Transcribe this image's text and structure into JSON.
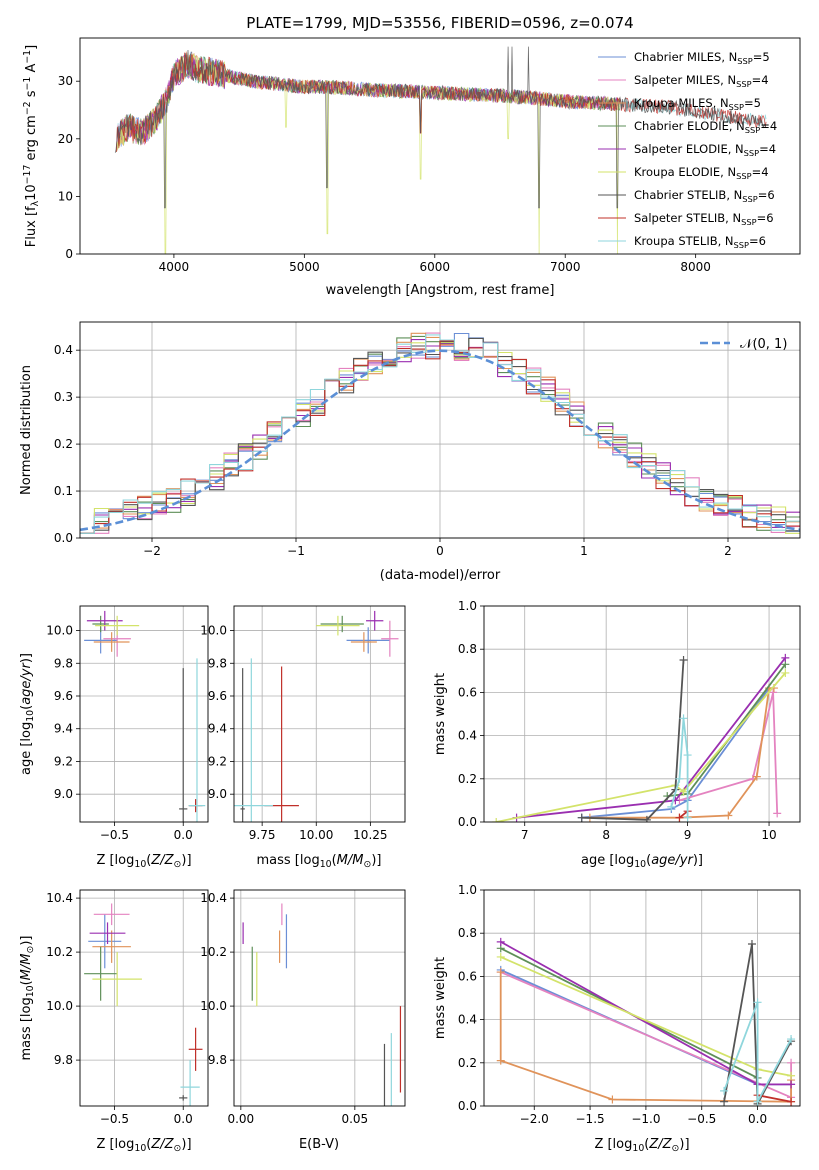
{
  "figure": {
    "title": "PLATE=1799, MJD=53556, FIBERID=0596, z=0.074"
  },
  "colors": {
    "Chabrier MILES": "#6b8fd6",
    "Salpeter MILES": "#e483c0",
    "Kroupa MILES": "#e0935a",
    "Chabrier ELODIE": "#5e8f58",
    "Salpeter ELODIE": "#9a2fb0",
    "Kroupa ELODIE": "#d3e36a",
    "Chabrier STELIB": "#555555",
    "Salpeter STELIB": "#c0302a",
    "Kroupa STELIB": "#8fd6dc",
    "normal": "#5b8fd6",
    "grid": "#b0b0b0"
  },
  "chart_data": [
    {
      "id": "spectrum",
      "type": "line",
      "title": "PLATE=1799, MJD=53556, FIBERID=0596, z=0.074",
      "xlabel": "wavelength [Angstrom, rest frame]",
      "ylabel": "Flux [f_λ 10^-17 erg cm^-2 s^-1 A^-1]",
      "xlim": [
        3280,
        8800
      ],
      "ylim": [
        0,
        37.5
      ],
      "xticks": [
        4000,
        5000,
        6000,
        7000,
        8000
      ],
      "yticks": [
        0,
        10,
        20,
        30
      ],
      "grid": false,
      "legend_position": "top-right",
      "legend": [
        {
          "label": "Chabrier MILES, N_SSP=5"
        },
        {
          "label": "Salpeter MILES, N_SSP=4"
        },
        {
          "label": "Kroupa MILES, N_SSP=5"
        },
        {
          "label": "Chabrier ELODIE, N_SSP=4"
        },
        {
          "label": "Salpeter ELODIE, N_SSP=4"
        },
        {
          "label": "Kroupa ELODIE, N_SSP=4"
        },
        {
          "label": "Chabrier STELIB, N_SSP=6"
        },
        {
          "label": "Salpeter STELIB, N_SSP=6"
        },
        {
          "label": "Kroupa STELIB, N_SSP=6"
        }
      ],
      "continuum": [
        [
          3550,
          20
        ],
        [
          3650,
          22
        ],
        [
          3750,
          21
        ],
        [
          3850,
          23
        ],
        [
          3950,
          27
        ],
        [
          4000,
          31
        ],
        [
          4100,
          33
        ],
        [
          4200,
          32
        ],
        [
          4400,
          31
        ],
        [
          4600,
          30
        ],
        [
          4800,
          29.5
        ],
        [
          5000,
          29
        ],
        [
          5200,
          29
        ],
        [
          5500,
          28.5
        ],
        [
          6000,
          28
        ],
        [
          6500,
          27.5
        ],
        [
          6800,
          27
        ],
        [
          7000,
          26.5
        ],
        [
          7400,
          26
        ],
        [
          7800,
          25.5
        ],
        [
          8200,
          24
        ],
        [
          8500,
          23
        ]
      ],
      "absorption": [
        [
          3933,
          0
        ],
        [
          4861,
          22
        ],
        [
          5175,
          3.5
        ],
        [
          5890,
          13
        ],
        [
          6563,
          20
        ],
        [
          6800,
          0
        ],
        [
          7400,
          0
        ]
      ],
      "emission_spikes": [
        6560,
        6590,
        6720
      ]
    },
    {
      "id": "residuals",
      "type": "step",
      "xlabel": "(data-model)/error",
      "ylabel": "Normed distribution",
      "xlim": [
        -2.5,
        2.5
      ],
      "ylim": [
        0,
        0.46
      ],
      "xticks": [
        -2,
        -1,
        0,
        1,
        2
      ],
      "yticks": [
        0.0,
        0.1,
        0.2,
        0.3,
        0.4
      ],
      "grid": true,
      "bin_width": 0.1,
      "reference": {
        "label": "𝒩(0, 1)",
        "mean": 0,
        "sigma": 1
      },
      "legend_position": "top-right"
    },
    {
      "id": "age-vs-Z",
      "type": "errorbar",
      "xlabel": "Z [log10(Z/Z⊙)]",
      "ylabel": "age [log10(age/yr)]",
      "xlim": [
        -0.75,
        0.18
      ],
      "ylim": [
        8.83,
        10.15
      ],
      "xticks": [
        -0.5,
        0.0
      ],
      "yticks": [
        9.0,
        9.2,
        9.4,
        9.6,
        9.8,
        10.0
      ],
      "grid": true,
      "points": [
        {
          "model": "Chabrier MILES",
          "x": -0.6,
          "y": 9.94,
          "xerr": 0.12,
          "yerr": 0.08
        },
        {
          "model": "Salpeter MILES",
          "x": -0.48,
          "y": 9.95,
          "xerr": 0.1,
          "yerr": 0.11
        },
        {
          "model": "Kroupa MILES",
          "x": -0.52,
          "y": 9.93,
          "xerr": 0.13,
          "yerr": 0.06
        },
        {
          "model": "Chabrier ELODIE",
          "x": -0.6,
          "y": 10.04,
          "xerr": 0.06,
          "yerr": 0.05
        },
        {
          "model": "Salpeter ELODIE",
          "x": -0.57,
          "y": 10.06,
          "xerr": 0.13,
          "yerr": 0.06
        },
        {
          "model": "Kroupa ELODIE",
          "x": -0.48,
          "y": 10.03,
          "xerr": 0.16,
          "yerr": 0.06
        },
        {
          "model": "Chabrier STELIB",
          "x": 0.0,
          "y": 8.91,
          "xerr": 0.03,
          "yerr": 0.86
        },
        {
          "model": "Salpeter STELIB",
          "x": 0.09,
          "y": 8.93,
          "xerr": 0.05,
          "yerr": 0.04
        },
        {
          "model": "Kroupa STELIB",
          "x": 0.1,
          "y": 8.93,
          "xerr": 0.06,
          "yerr": 0.9
        }
      ]
    },
    {
      "id": "age-vs-mass",
      "type": "errorbar",
      "xlabel": "mass [log10(M/M⊙)]",
      "ylabel": "",
      "xlim": [
        9.62,
        10.41
      ],
      "ylim": [
        8.83,
        10.15
      ],
      "xticks": [
        9.75,
        10.0,
        10.25
      ],
      "yticks": [
        9.0,
        9.2,
        9.4,
        9.6,
        9.8,
        10.0
      ],
      "grid": true,
      "points": [
        {
          "model": "Chabrier MILES",
          "x": 10.24,
          "y": 9.94,
          "xerr": 0.1,
          "yerr": 0.08
        },
        {
          "model": "Salpeter MILES",
          "x": 10.34,
          "y": 9.95,
          "xerr": 0.04,
          "yerr": 0.11
        },
        {
          "model": "Kroupa MILES",
          "x": 10.22,
          "y": 9.93,
          "xerr": 0.06,
          "yerr": 0.06
        },
        {
          "model": "Chabrier ELODIE",
          "x": 10.12,
          "y": 10.04,
          "xerr": 0.1,
          "yerr": 0.05
        },
        {
          "model": "Salpeter ELODIE",
          "x": 10.27,
          "y": 10.06,
          "xerr": 0.04,
          "yerr": 0.06
        },
        {
          "model": "Kroupa ELODIE",
          "x": 10.1,
          "y": 10.03,
          "xerr": 0.1,
          "yerr": 0.06
        },
        {
          "model": "Chabrier STELIB",
          "x": 9.66,
          "y": 8.91,
          "xerr": 0.01,
          "yerr": 0.86
        },
        {
          "model": "Salpeter STELIB",
          "x": 9.84,
          "y": 8.93,
          "xerr": 0.08,
          "yerr": 0.85
        },
        {
          "model": "Kroupa STELIB",
          "x": 9.7,
          "y": 8.93,
          "xerr": 0.1,
          "yerr": 0.9
        }
      ]
    },
    {
      "id": "weight-vs-age",
      "type": "line",
      "xlabel": "age [log10(age/yr)]",
      "ylabel": "mass weight",
      "xlim": [
        6.5,
        10.38
      ],
      "ylim": [
        0,
        1
      ],
      "xticks": [
        7,
        8,
        9,
        10
      ],
      "yticks": [
        0.0,
        0.2,
        0.4,
        0.6,
        0.8,
        1.0
      ],
      "grid": true,
      "series": [
        {
          "model": "Chabrier MILES",
          "x": [
            7.7,
            8.8,
            9.0,
            10.0
          ],
          "y": [
            0.02,
            0.06,
            0.1,
            0.62
          ]
        },
        {
          "model": "Salpeter MILES",
          "x": [
            8.9,
            9.8,
            10.05,
            10.1
          ],
          "y": [
            0.1,
            0.2,
            0.6,
            0.04
          ]
        },
        {
          "model": "Kroupa MILES",
          "x": [
            7.8,
            8.9,
            9.5,
            9.85,
            10.0,
            10.06
          ],
          "y": [
            0.02,
            0.02,
            0.03,
            0.21,
            0.62,
            0.62
          ]
        },
        {
          "model": "Chabrier ELODIE",
          "x": [
            8.75,
            9.0,
            10.2
          ],
          "y": [
            0.12,
            0.13,
            0.73
          ]
        },
        {
          "model": "Salpeter ELODIE",
          "x": [
            6.9,
            8.85,
            10.2
          ],
          "y": [
            0.02,
            0.1,
            0.76
          ]
        },
        {
          "model": "Kroupa ELODIE",
          "x": [
            6.65,
            8.85,
            8.95,
            10.2
          ],
          "y": [
            0.0,
            0.17,
            0.14,
            0.69
          ]
        },
        {
          "model": "Chabrier STELIB",
          "x": [
            7.7,
            8.5,
            8.85,
            8.95
          ],
          "y": [
            0.02,
            0.01,
            0.15,
            0.75
          ]
        },
        {
          "model": "Salpeter STELIB",
          "x": [
            8.9,
            9.0
          ],
          "y": [
            0.02,
            0.05
          ]
        },
        {
          "model": "Kroupa STELIB",
          "x": [
            8.8,
            8.9,
            8.95,
            9.0,
            9.0
          ],
          "y": [
            0.07,
            0.2,
            0.48,
            0.31,
            0.02
          ]
        }
      ]
    },
    {
      "id": "mass-vs-Z",
      "type": "errorbar",
      "xlabel": "Z [log10(Z/Z⊙)]",
      "ylabel": "mass [log10(M/M⊙)]",
      "xlim": [
        -0.75,
        0.18
      ],
      "ylim": [
        9.63,
        10.43
      ],
      "xticks": [
        -0.5,
        0.0
      ],
      "yticks": [
        9.8,
        10.0,
        10.2,
        10.4
      ],
      "grid": true,
      "points": [
        {
          "model": "Chabrier MILES",
          "x": -0.57,
          "y": 10.24,
          "xerr": 0.12,
          "yerr": 0.1
        },
        {
          "model": "Salpeter MILES",
          "x": -0.52,
          "y": 10.34,
          "xerr": 0.13,
          "yerr": 0.04
        },
        {
          "model": "Kroupa MILES",
          "x": -0.52,
          "y": 10.22,
          "xerr": 0.14,
          "yerr": 0.06
        },
        {
          "model": "Chabrier ELODIE",
          "x": -0.6,
          "y": 10.12,
          "xerr": 0.12,
          "yerr": 0.1
        },
        {
          "model": "Salpeter ELODIE",
          "x": -0.55,
          "y": 10.27,
          "xerr": 0.13,
          "yerr": 0.04
        },
        {
          "model": "Kroupa ELODIE",
          "x": -0.48,
          "y": 10.1,
          "xerr": 0.18,
          "yerr": 0.1
        },
        {
          "model": "Chabrier STELIB",
          "x": 0.0,
          "y": 9.66,
          "xerr": 0.03,
          "yerr": 0.01
        },
        {
          "model": "Salpeter STELIB",
          "x": 0.09,
          "y": 9.84,
          "xerr": 0.05,
          "yerr": 0.08
        },
        {
          "model": "Kroupa STELIB",
          "x": 0.05,
          "y": 9.7,
          "xerr": 0.07,
          "yerr": 0.1
        }
      ]
    },
    {
      "id": "mass-vs-ebv",
      "type": "errorbar",
      "xlabel": "E(B-V)",
      "ylabel": "",
      "xlim": [
        -0.003,
        0.072
      ],
      "ylim": [
        9.63,
        10.43
      ],
      "xticks": [
        0.0,
        0.05
      ],
      "yticks": [
        9.8,
        10.0,
        10.2,
        10.4
      ],
      "grid": true,
      "points": [
        {
          "model": "Chabrier MILES",
          "x": 0.02,
          "y": 10.24,
          "xerr": 0.0,
          "yerr": 0.1
        },
        {
          "model": "Salpeter MILES",
          "x": 0.018,
          "y": 10.34,
          "xerr": 0.0,
          "yerr": 0.04
        },
        {
          "model": "Kroupa MILES",
          "x": 0.017,
          "y": 10.22,
          "xerr": 0.0,
          "yerr": 0.06
        },
        {
          "model": "Chabrier ELODIE",
          "x": 0.005,
          "y": 10.12,
          "xerr": 0.0,
          "yerr": 0.1
        },
        {
          "model": "Salpeter ELODIE",
          "x": 0.001,
          "y": 10.27,
          "xerr": 0.0,
          "yerr": 0.04
        },
        {
          "model": "Kroupa ELODIE",
          "x": 0.007,
          "y": 10.1,
          "xerr": 0.0,
          "yerr": 0.1
        },
        {
          "model": "Chabrier STELIB",
          "x": 0.063,
          "y": 9.66,
          "xerr": 0.0,
          "yerr": 0.2
        },
        {
          "model": "Salpeter STELIB",
          "x": 0.07,
          "y": 9.84,
          "xerr": 0.0,
          "yerr": 0.16
        },
        {
          "model": "Kroupa STELIB",
          "x": 0.066,
          "y": 9.7,
          "xerr": 0.0,
          "yerr": 0.2
        }
      ]
    },
    {
      "id": "weight-vs-Z",
      "type": "line",
      "xlabel": "Z [log10(Z/Z⊙)]",
      "ylabel": "mass weight",
      "xlim": [
        -2.45,
        0.38
      ],
      "ylim": [
        0,
        1
      ],
      "xticks": [
        -2.0,
        -1.5,
        -1.0,
        -0.5,
        0.0
      ],
      "yticks": [
        0.0,
        0.2,
        0.4,
        0.6,
        0.8,
        1.0
      ],
      "grid": true,
      "series": [
        {
          "model": "Chabrier MILES",
          "x": [
            -2.3,
            0.0,
            0.3
          ],
          "y": [
            0.63,
            0.1,
            0.1
          ]
        },
        {
          "model": "Salpeter MILES",
          "x": [
            -2.3,
            0.3,
            0.3
          ],
          "y": [
            0.62,
            0.04,
            0.2
          ]
        },
        {
          "model": "Kroupa MILES",
          "x": [
            -2.3,
            -2.3,
            -1.3,
            0.3,
            0.3
          ],
          "y": [
            0.62,
            0.21,
            0.03,
            0.02,
            0.12
          ]
        },
        {
          "model": "Chabrier ELODIE",
          "x": [
            -2.3,
            0.0
          ],
          "y": [
            0.73,
            0.13
          ]
        },
        {
          "model": "Salpeter ELODIE",
          "x": [
            -2.3,
            0.0,
            0.3
          ],
          "y": [
            0.76,
            0.1,
            0.1
          ]
        },
        {
          "model": "Kroupa ELODIE",
          "x": [
            -2.3,
            0.0,
            0.3
          ],
          "y": [
            0.69,
            0.17,
            0.14
          ]
        },
        {
          "model": "Chabrier STELIB",
          "x": [
            -0.3,
            -0.05,
            0.0,
            0.3
          ],
          "y": [
            0.02,
            0.75,
            0.01,
            0.3
          ]
        },
        {
          "model": "Salpeter STELIB",
          "x": [
            0.0,
            0.3
          ],
          "y": [
            0.05,
            0.02
          ]
        },
        {
          "model": "Kroupa STELIB",
          "x": [
            -0.3,
            0.0,
            0.0,
            0.3
          ],
          "y": [
            0.07,
            0.48,
            0.02,
            0.31
          ]
        }
      ]
    }
  ]
}
